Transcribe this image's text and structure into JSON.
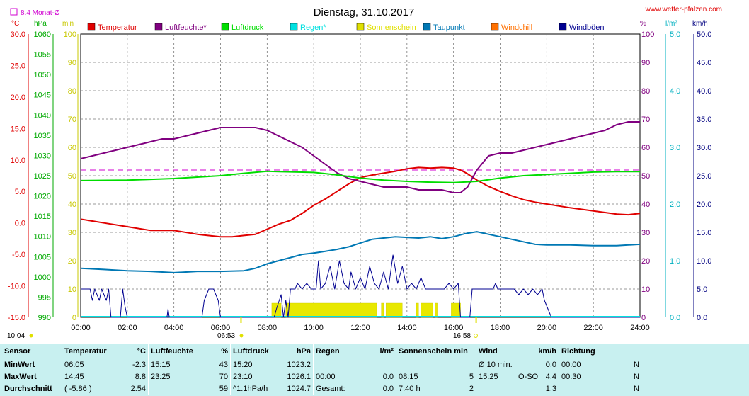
{
  "header": {
    "title": "Dienstag, 31.10.2017",
    "site": "www.wetter-pfalzen.com",
    "avg_label": "8.4 Monat-Ø"
  },
  "units": {
    "temp": "°C",
    "pressure": "hPa",
    "sun": "min",
    "humidity": "%",
    "rain": "l/m²",
    "wind": "km/h"
  },
  "legend": [
    {
      "name": "Temperatur",
      "color": "#e00000"
    },
    {
      "name": "Luftfeuchte*",
      "color": "#800080"
    },
    {
      "name": "Luftdruck",
      "color": "#00dd00"
    },
    {
      "name": "Regen*",
      "color": "#00e0e0"
    },
    {
      "name": "Sonnenschein",
      "color": "#e0e000"
    },
    {
      "name": "Taupunkt",
      "color": "#0078b4"
    },
    {
      "name": "Windchill",
      "color": "#ff7000"
    },
    {
      "name": "Windböen",
      "color": "#000090"
    }
  ],
  "sun_markers": {
    "sunrise": "10:04",
    "sunrise_mark": "06:53",
    "sunset_mark": "16:58"
  },
  "chart_data": {
    "type": "line",
    "x_ticks": [
      "00:00",
      "02:00",
      "04:00",
      "06:00",
      "08:00",
      "10:00",
      "12:00",
      "14:00",
      "16:00",
      "18:00",
      "20:00",
      "22:00",
      "24:00"
    ],
    "axes": {
      "temp": {
        "range": [
          -15,
          30
        ],
        "ticks": [
          "30.0",
          "25.0",
          "20.0",
          "15.0",
          "10.0",
          "5.0",
          "0.0",
          "-5.0",
          "-10.0",
          "-15.0"
        ]
      },
      "pressure": {
        "range": [
          990,
          1060
        ],
        "ticks": [
          "1060",
          "1055",
          "1050",
          "1045",
          "1040",
          "1035",
          "1030",
          "1025",
          "1020",
          "1015",
          "1010",
          "1005",
          "1000",
          "995",
          "990"
        ]
      },
      "sun": {
        "range": [
          0,
          100
        ],
        "ticks": [
          "100",
          "90",
          "80",
          "70",
          "60",
          "50",
          "40",
          "30",
          "20",
          "10",
          "0"
        ]
      },
      "humidity": {
        "range": [
          0,
          100
        ],
        "ticks": [
          "100",
          "90",
          "80",
          "70",
          "60",
          "50",
          "40",
          "30",
          "20",
          "10",
          "0"
        ]
      },
      "rain": {
        "range": [
          0,
          5
        ],
        "ticks": [
          "5.0",
          "4.0",
          "3.0",
          "2.0",
          "1.0",
          "0.0"
        ]
      },
      "wind": {
        "range": [
          0,
          50
        ],
        "ticks": [
          "50.0",
          "45.0",
          "40.0",
          "35.0",
          "30.0",
          "25.0",
          "20.0",
          "15.0",
          "10.0",
          "5.0",
          "0.0"
        ]
      }
    },
    "monthly_avg_temp": 8.4,
    "series": [
      {
        "name": "Temperatur",
        "axis": "temp",
        "color": "#e00000",
        "points": [
          [
            0,
            0.6
          ],
          [
            1,
            0.0
          ],
          [
            2,
            -0.6
          ],
          [
            3,
            -1.2
          ],
          [
            4,
            -1.2
          ],
          [
            5,
            -1.8
          ],
          [
            6,
            -2.2
          ],
          [
            6.5,
            -2.2
          ],
          [
            7,
            -2.0
          ],
          [
            7.5,
            -1.8
          ],
          [
            8,
            -1.0
          ],
          [
            8.5,
            -0.2
          ],
          [
            9,
            0.4
          ],
          [
            9.5,
            1.5
          ],
          [
            10,
            2.8
          ],
          [
            10.5,
            3.8
          ],
          [
            11,
            5.0
          ],
          [
            11.5,
            6.2
          ],
          [
            12,
            7.2
          ],
          [
            12.5,
            7.6
          ],
          [
            13,
            7.9
          ],
          [
            13.5,
            8.2
          ],
          [
            14,
            8.6
          ],
          [
            14.5,
            8.8
          ],
          [
            15,
            8.7
          ],
          [
            15.5,
            8.8
          ],
          [
            16,
            8.7
          ],
          [
            16.3,
            8.4
          ],
          [
            16.6,
            7.8
          ],
          [
            17,
            6.8
          ],
          [
            17.5,
            5.8
          ],
          [
            18,
            5.0
          ],
          [
            18.5,
            4.3
          ],
          [
            19,
            3.7
          ],
          [
            19.5,
            3.3
          ],
          [
            20,
            3.0
          ],
          [
            21,
            2.4
          ],
          [
            22,
            1.9
          ],
          [
            23,
            1.4
          ],
          [
            23.5,
            1.3
          ],
          [
            24,
            1.5
          ]
        ]
      },
      {
        "name": "Luftfeuchte*",
        "axis": "humidity",
        "color": "#800080",
        "points": [
          [
            0,
            56
          ],
          [
            0.5,
            57
          ],
          [
            1,
            58
          ],
          [
            2,
            60
          ],
          [
            3,
            62
          ],
          [
            3.5,
            63
          ],
          [
            4,
            63
          ],
          [
            4.5,
            64
          ],
          [
            5,
            65
          ],
          [
            5.5,
            66
          ],
          [
            6,
            67
          ],
          [
            6.5,
            67
          ],
          [
            7,
            67
          ],
          [
            7.5,
            67
          ],
          [
            8,
            66
          ],
          [
            8.5,
            64
          ],
          [
            9,
            62
          ],
          [
            9.5,
            60
          ],
          [
            10,
            57
          ],
          [
            10.5,
            54
          ],
          [
            11,
            51
          ],
          [
            11.5,
            49
          ],
          [
            12,
            48
          ],
          [
            12.5,
            47
          ],
          [
            13,
            46
          ],
          [
            13.5,
            46
          ],
          [
            14,
            46
          ],
          [
            14.5,
            45
          ],
          [
            15,
            45
          ],
          [
            15.5,
            45
          ],
          [
            16,
            44
          ],
          [
            16.3,
            44
          ],
          [
            16.6,
            46
          ],
          [
            17,
            52
          ],
          [
            17.5,
            57
          ],
          [
            18,
            58
          ],
          [
            18.5,
            58
          ],
          [
            19,
            59
          ],
          [
            20,
            61
          ],
          [
            21,
            63
          ],
          [
            22,
            65
          ],
          [
            22.5,
            66
          ],
          [
            23,
            68
          ],
          [
            23.5,
            69
          ],
          [
            24,
            69
          ]
        ]
      },
      {
        "name": "Luftdruck",
        "axis": "pressure",
        "color": "#00dd00",
        "points": [
          [
            0,
            1023.8
          ],
          [
            2,
            1023.9
          ],
          [
            4,
            1024.3
          ],
          [
            6,
            1025.0
          ],
          [
            7,
            1025.6
          ],
          [
            8,
            1026.1
          ],
          [
            8.5,
            1026.0
          ],
          [
            10,
            1025.8
          ],
          [
            11,
            1025.2
          ],
          [
            12,
            1024.4
          ],
          [
            13,
            1023.9
          ],
          [
            14,
            1023.6
          ],
          [
            15,
            1023.4
          ],
          [
            16,
            1023.3
          ],
          [
            17,
            1023.6
          ],
          [
            18,
            1024.4
          ],
          [
            19,
            1025.0
          ],
          [
            20,
            1025.3
          ],
          [
            21,
            1025.6
          ],
          [
            22,
            1025.9
          ],
          [
            23,
            1026.0
          ],
          [
            24,
            1026.0
          ]
        ]
      },
      {
        "name": "Taupunkt",
        "axis": "temp",
        "color": "#0078b4",
        "points": [
          [
            0,
            -7.2
          ],
          [
            1,
            -7.4
          ],
          [
            2,
            -7.6
          ],
          [
            3,
            -7.7
          ],
          [
            4,
            -7.9
          ],
          [
            5,
            -7.7
          ],
          [
            6,
            -7.7
          ],
          [
            7,
            -7.6
          ],
          [
            7.5,
            -7.2
          ],
          [
            8,
            -6.5
          ],
          [
            8.5,
            -6.0
          ],
          [
            9,
            -5.5
          ],
          [
            9.5,
            -5.0
          ],
          [
            10,
            -4.8
          ],
          [
            10.5,
            -4.5
          ],
          [
            11,
            -4.2
          ],
          [
            11.5,
            -3.8
          ],
          [
            12,
            -3.2
          ],
          [
            12.5,
            -2.6
          ],
          [
            13,
            -2.4
          ],
          [
            13.5,
            -2.2
          ],
          [
            14,
            -2.3
          ],
          [
            14.5,
            -2.4
          ],
          [
            15,
            -2.2
          ],
          [
            15.5,
            -2.5
          ],
          [
            16,
            -2.2
          ],
          [
            16.5,
            -1.7
          ],
          [
            17,
            -1.4
          ],
          [
            17.5,
            -1.8
          ],
          [
            18,
            -2.2
          ],
          [
            18.5,
            -2.6
          ],
          [
            19,
            -3.0
          ],
          [
            19.5,
            -3.4
          ],
          [
            20,
            -3.5
          ],
          [
            21,
            -3.5
          ],
          [
            22,
            -3.6
          ],
          [
            23,
            -3.6
          ],
          [
            24,
            -3.4
          ]
        ]
      },
      {
        "name": "Windböen",
        "axis": "wind",
        "color": "#000090",
        "points": [
          [
            0,
            5
          ],
          [
            0.4,
            5
          ],
          [
            0.5,
            3
          ],
          [
            0.6,
            5
          ],
          [
            0.8,
            3
          ],
          [
            0.9,
            5
          ],
          [
            1.1,
            3
          ],
          [
            1.2,
            5
          ],
          [
            1.3,
            0
          ],
          [
            1.7,
            0
          ],
          [
            1.8,
            5
          ],
          [
            1.9,
            2
          ],
          [
            2.0,
            0
          ],
          [
            3.7,
            0
          ],
          [
            3.75,
            1.5
          ],
          [
            3.8,
            0
          ],
          [
            5.2,
            0
          ],
          [
            5.3,
            3
          ],
          [
            5.5,
            5
          ],
          [
            5.7,
            5
          ],
          [
            5.9,
            3
          ],
          [
            6.0,
            0
          ],
          [
            8.3,
            0
          ],
          [
            8.4,
            1.5
          ],
          [
            8.6,
            4
          ],
          [
            8.7,
            0
          ],
          [
            8.8,
            3
          ],
          [
            8.9,
            0
          ],
          [
            9.0,
            5
          ],
          [
            9.2,
            5
          ],
          [
            9.3,
            6
          ],
          [
            9.5,
            5
          ],
          [
            9.7,
            6
          ],
          [
            9.9,
            5
          ],
          [
            10.1,
            5
          ],
          [
            10.2,
            10
          ],
          [
            10.3,
            5
          ],
          [
            10.5,
            6
          ],
          [
            10.7,
            9
          ],
          [
            10.9,
            5
          ],
          [
            11.1,
            10
          ],
          [
            11.3,
            6
          ],
          [
            11.5,
            5
          ],
          [
            11.6,
            8
          ],
          [
            11.8,
            5
          ],
          [
            12.0,
            7
          ],
          [
            12.2,
            5
          ],
          [
            12.4,
            9
          ],
          [
            12.6,
            6
          ],
          [
            12.8,
            5
          ],
          [
            13.0,
            8
          ],
          [
            13.2,
            5
          ],
          [
            13.4,
            11
          ],
          [
            13.6,
            6
          ],
          [
            13.8,
            9
          ],
          [
            14.0,
            5
          ],
          [
            14.2,
            6
          ],
          [
            14.4,
            5
          ],
          [
            14.6,
            7
          ],
          [
            14.8,
            5
          ],
          [
            15.2,
            5
          ],
          [
            15.6,
            5
          ],
          [
            15.8,
            6
          ],
          [
            16.0,
            5
          ],
          [
            16.2,
            6
          ],
          [
            16.3,
            0
          ],
          [
            16.7,
            0
          ],
          [
            16.8,
            5
          ],
          [
            17.0,
            5
          ],
          [
            17.5,
            5
          ],
          [
            17.7,
            5
          ],
          [
            17.8,
            6
          ],
          [
            17.9,
            5
          ],
          [
            18.5,
            5
          ],
          [
            18.6,
            5
          ],
          [
            18.8,
            4
          ],
          [
            19.0,
            5
          ],
          [
            19.2,
            4
          ],
          [
            19.4,
            5
          ],
          [
            19.6,
            4
          ],
          [
            19.8,
            5
          ],
          [
            19.9,
            3
          ],
          [
            20.0,
            2
          ],
          [
            20.1,
            1
          ],
          [
            20.2,
            0
          ],
          [
            24,
            0
          ]
        ]
      }
    ],
    "sunshine_blocks": [
      [
        8.2,
        8.6
      ],
      [
        8.8,
        12.7
      ],
      [
        12.9,
        13.0
      ],
      [
        13.1,
        13.8
      ],
      [
        14.4,
        14.5
      ],
      [
        14.6,
        14.9
      ],
      [
        14.9,
        15.1
      ],
      [
        15.2,
        15.3
      ],
      [
        15.9,
        16.3
      ]
    ],
    "sunshine_level": 5
  },
  "stats": {
    "headers": [
      "Sensor",
      "Temperatur",
      "°C",
      "Luftfeuchte",
      "%",
      "Luftdruck",
      "hPa",
      "Regen",
      "l/m²",
      "Sonnenschein min",
      "Wind",
      "km/h",
      "Richtung"
    ],
    "rows": [
      {
        "label": "MinWert",
        "temp_time": "06:05",
        "temp": "-2.3",
        "hum_time": "15:15",
        "hum": "43",
        "pres_time": "15:20",
        "pres": "1023.2",
        "rain_time": "",
        "rain": "",
        "sun_time": "",
        "sun": "",
        "wind_time": "Ø 10 min.",
        "wind_dir": "",
        "wind": "0.0",
        "dir_time": "00:00",
        "dir": "N"
      },
      {
        "label": "MaxWert",
        "temp_time": "14:45",
        "temp": "8.8",
        "hum_time": "23:25",
        "hum": "70",
        "pres_time": "23:10",
        "pres": "1026.1",
        "rain_time": "00:00",
        "rain": "0.0",
        "sun_time": "08:15",
        "sun": "5",
        "wind_time": "15:25",
        "wind_dir": "O-SO",
        "wind": "4.4",
        "dir_time": "00:30",
        "dir": "N"
      },
      {
        "label": "Durchschnitt",
        "temp_time": "( -5.86 )",
        "temp": "2.54",
        "hum_time": "",
        "hum": "59",
        "pres_time": "^1.1hPa/h",
        "pres": "1024.7",
        "rain_time": "Gesamt:",
        "rain": "0.0",
        "sun_time": "7:40 h",
        "sun": "2",
        "wind_time": "",
        "wind_dir": "",
        "wind": "1.3",
        "dir_time": "",
        "dir": "N"
      }
    ]
  }
}
